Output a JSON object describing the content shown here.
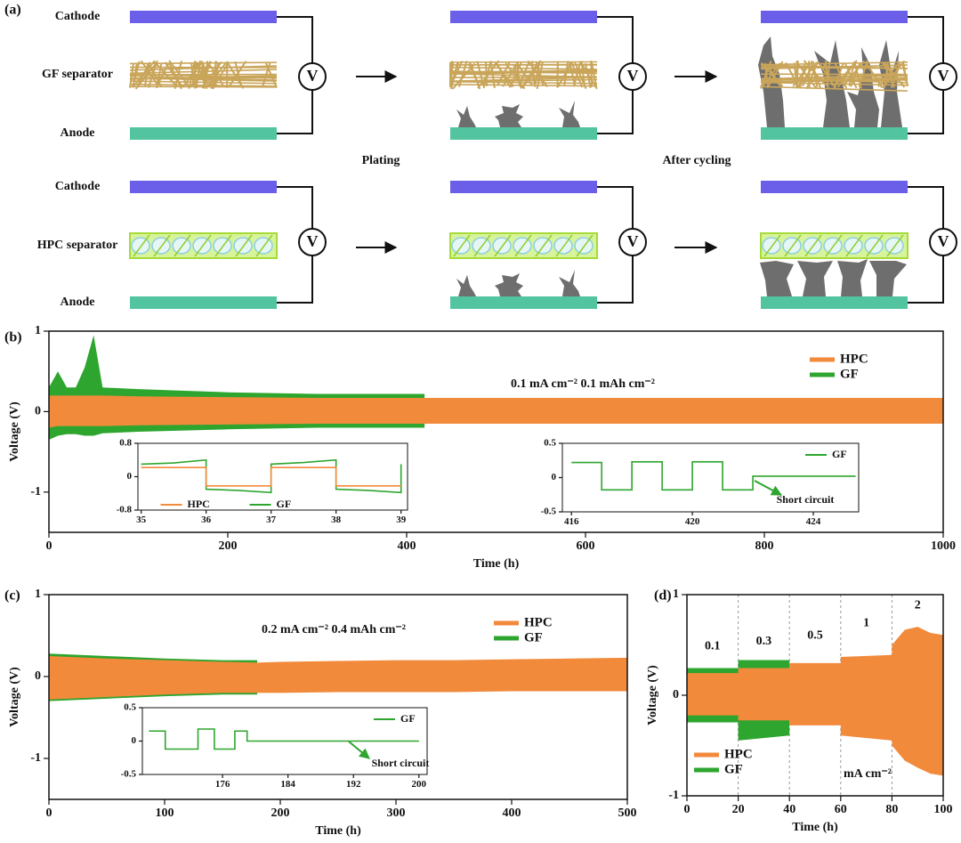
{
  "diagram": {
    "panel": "(a)",
    "rows": [
      {
        "cathode": "Cathode",
        "separator": "GF separator",
        "anode": "Anode"
      },
      {
        "cathode": "Cathode",
        "separator": "HPC separator",
        "anode": "Anode"
      }
    ],
    "steps": [
      "Plating",
      "After cycling"
    ],
    "meter": "V"
  },
  "chart_data": [
    {
      "type": "band",
      "panel": "(b)",
      "x_label": "Time (h)",
      "y_label": "Voltage (V)",
      "annotation": "0.1 mA cm⁻²  0.1 mAh cm⁻²",
      "x": [
        0,
        10,
        20,
        30,
        40,
        50,
        60,
        100,
        200,
        300,
        420,
        500,
        600,
        700,
        800,
        900,
        1000
      ],
      "series": [
        {
          "name": "HPC",
          "color": "#f28a3c",
          "values": [
            0.2,
            0.2,
            0.2,
            0.2,
            0.2,
            0.2,
            0.2,
            0.19,
            0.18,
            0.17,
            0.17,
            0.17,
            0.17,
            0.17,
            0.17,
            0.17,
            0.17
          ],
          "lower": [
            -0.2,
            -0.18,
            -0.18,
            -0.18,
            -0.18,
            -0.18,
            -0.18,
            -0.17,
            -0.16,
            -0.15,
            -0.15,
            -0.15,
            -0.15,
            -0.15,
            -0.15,
            -0.15,
            -0.15
          ]
        },
        {
          "name": "GF",
          "color": "#2ea52e",
          "values": [
            0.3,
            0.5,
            0.3,
            0.3,
            0.55,
            0.95,
            0.3,
            0.28,
            0.24,
            0.22,
            0.22,
            null,
            null,
            null,
            null,
            null,
            null
          ],
          "lower": [
            -0.35,
            -0.3,
            -0.28,
            -0.28,
            -0.3,
            -0.3,
            -0.27,
            -0.25,
            -0.22,
            -0.2,
            -0.2,
            null,
            null,
            null,
            null,
            null,
            null
          ]
        }
      ],
      "xlim": [
        0,
        1000
      ],
      "ylim": [
        -1.5,
        1
      ],
      "xticks": [
        0,
        200,
        400,
        600,
        800,
        1000
      ],
      "yticks": [
        -1,
        0,
        1
      ],
      "legend": "upper right"
    },
    {
      "type": "line",
      "series": [
        {
          "name": "HPC",
          "color": "#f28a3c",
          "x": [
            35,
            36,
            36,
            37,
            37,
            38,
            38,
            39
          ],
          "values": [
            0.22,
            0.22,
            -0.22,
            -0.22,
            0.22,
            0.22,
            -0.22,
            -0.22
          ]
        },
        {
          "name": "GF",
          "color": "#2ea52e",
          "x": [
            35,
            35.5,
            36,
            36,
            36.5,
            37,
            37,
            37.5,
            38,
            38,
            38.5,
            39,
            39
          ],
          "values": [
            0.3,
            0.33,
            0.4,
            -0.3,
            -0.33,
            -0.38,
            0.3,
            0.34,
            0.4,
            -0.3,
            -0.33,
            -0.38,
            0.3
          ]
        }
      ],
      "xlim": [
        34.95,
        39.1
      ],
      "ylim": [
        -0.8,
        0.8
      ],
      "xticks": [
        35,
        36,
        37,
        38,
        39
      ],
      "yticks": [
        -0.8,
        0,
        0.8
      ],
      "legend": "lower center"
    },
    {
      "type": "line",
      "annotation": "Short circuit",
      "series": [
        {
          "name": "GF",
          "color": "#2ea52e",
          "x": [
            416,
            417,
            417,
            418,
            418,
            419,
            419,
            420,
            420,
            421,
            421,
            422,
            422,
            425.4
          ],
          "values": [
            0.22,
            0.22,
            -0.18,
            -0.18,
            0.23,
            0.23,
            -0.18,
            -0.18,
            0.23,
            0.23,
            -0.18,
            -0.18,
            0.02,
            0.02
          ]
        }
      ],
      "xlim": [
        415.7,
        425.5
      ],
      "ylim": [
        -0.5,
        0.5
      ],
      "xticks": [
        416,
        420,
        424
      ],
      "yticks": [
        -0.5,
        0,
        0.5
      ],
      "legend": "upper right"
    },
    {
      "type": "band",
      "panel": "(c)",
      "x_label": "Time (h)",
      "y_label": "Voltage (V)",
      "annotation": "0.2 mA cm⁻²  0.4 mAh cm⁻²",
      "x": [
        0,
        50,
        100,
        150,
        180,
        200,
        250,
        300,
        350,
        400,
        450,
        500
      ],
      "series": [
        {
          "name": "HPC",
          "color": "#f28a3c",
          "values": [
            0.25,
            0.22,
            0.2,
            0.18,
            0.17,
            0.18,
            0.19,
            0.2,
            0.2,
            0.21,
            0.22,
            0.23
          ],
          "lower": [
            -0.28,
            -0.25,
            -0.22,
            -0.2,
            -0.2,
            -0.2,
            -0.19,
            -0.19,
            -0.19,
            -0.18,
            -0.18,
            -0.18
          ]
        },
        {
          "name": "GF",
          "color": "#2ea52e",
          "values": [
            0.28,
            0.25,
            0.22,
            0.2,
            0.2,
            null,
            null,
            null,
            null,
            null,
            null,
            null
          ],
          "lower": [
            -0.3,
            -0.27,
            -0.24,
            -0.22,
            -0.22,
            null,
            null,
            null,
            null,
            null,
            null,
            null
          ]
        }
      ],
      "xlim": [
        0,
        500
      ],
      "ylim": [
        -1.5,
        1
      ],
      "xticks": [
        0,
        100,
        200,
        300,
        400,
        500
      ],
      "yticks": [
        -1,
        0,
        1
      ],
      "legend": "upper right"
    },
    {
      "type": "line",
      "annotation": "Short circuit",
      "series": [
        {
          "name": "GF",
          "color": "#2ea52e",
          "x": [
            167,
            169,
            169,
            173,
            173,
            175,
            175,
            177.5,
            177.5,
            179,
            179,
            200
          ],
          "values": [
            0.15,
            0.15,
            -0.12,
            -0.12,
            0.18,
            0.18,
            -0.12,
            -0.12,
            0.15,
            0.15,
            0,
            0
          ]
        }
      ],
      "xlim": [
        166.2,
        201
      ],
      "ylim": [
        -0.5,
        0.5
      ],
      "xticks": [
        176,
        184,
        192,
        200
      ],
      "yticks": [
        -0.5,
        0,
        0.5
      ],
      "legend": "upper right"
    },
    {
      "type": "band",
      "panel": "(d)",
      "x_label": "Time (h)",
      "y_label": "Voltage (V)",
      "unit_label": "mA cm⁻²",
      "current_densities": [
        0.1,
        0.3,
        0.5,
        1,
        2
      ],
      "dividers": [
        20,
        40,
        60,
        80
      ],
      "x": [
        0,
        20,
        20,
        40,
        40,
        60,
        60,
        80,
        80,
        85,
        90,
        95,
        100
      ],
      "series": [
        {
          "name": "HPC",
          "color": "#f28a3c",
          "values": [
            0.22,
            0.22,
            0.27,
            0.27,
            0.32,
            0.32,
            0.38,
            0.4,
            0.5,
            0.65,
            0.68,
            0.62,
            0.6
          ],
          "lower": [
            -0.2,
            -0.2,
            -0.25,
            -0.25,
            -0.3,
            -0.3,
            -0.4,
            -0.45,
            -0.5,
            -0.65,
            -0.72,
            -0.78,
            -0.8
          ]
        },
        {
          "name": "GF",
          "color": "#2ea52e",
          "values": [
            0.27,
            0.27,
            0.35,
            0.35,
            null,
            null,
            null,
            null,
            null,
            null,
            null,
            null,
            null
          ],
          "lower": [
            -0.27,
            -0.27,
            -0.45,
            -0.4,
            null,
            null,
            null,
            null,
            null,
            null,
            null,
            null,
            null
          ]
        }
      ],
      "xlim": [
        0,
        100
      ],
      "ylim": [
        -1,
        1
      ],
      "xticks": [
        0,
        20,
        40,
        60,
        80,
        100
      ],
      "yticks": [
        -1,
        0,
        1
      ],
      "legend": "lower left"
    }
  ]
}
